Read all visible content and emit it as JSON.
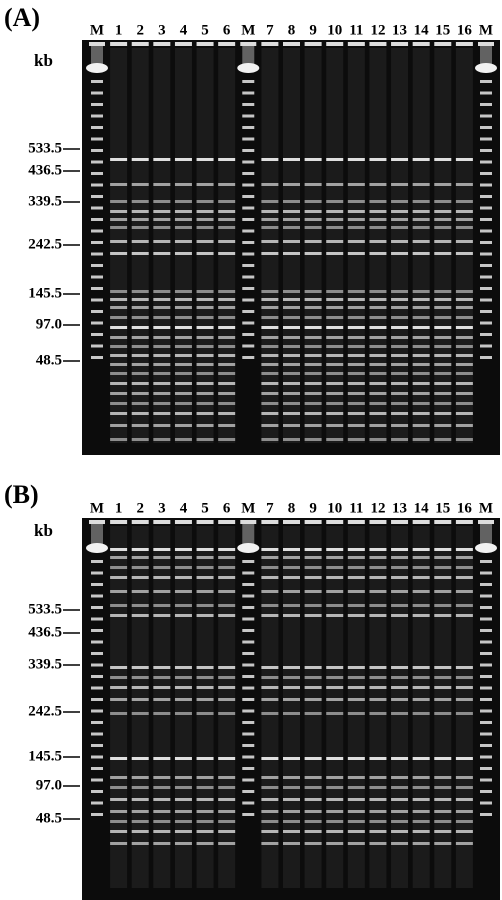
{
  "panels": [
    {
      "label": "(A)",
      "unit": "kb",
      "lanes": [
        "M",
        "1",
        "2",
        "3",
        "4",
        "5",
        "6",
        "M",
        "7",
        "8",
        "9",
        "10",
        "11",
        "12",
        "13",
        "14",
        "15",
        "16",
        "M"
      ],
      "markers": [
        "533.5",
        "436.5",
        "339.5",
        "242.5",
        "145.5",
        "97.0",
        "48.5"
      ]
    },
    {
      "label": "(B)",
      "unit": "kb",
      "lanes": [
        "M",
        "1",
        "2",
        "3",
        "4",
        "5",
        "6",
        "M",
        "7",
        "8",
        "9",
        "10",
        "11",
        "12",
        "13",
        "14",
        "15",
        "16",
        "M"
      ],
      "markers": [
        "533.5",
        "436.5",
        "339.5",
        "242.5",
        "145.5",
        "97.0",
        "48.5"
      ]
    }
  ]
}
